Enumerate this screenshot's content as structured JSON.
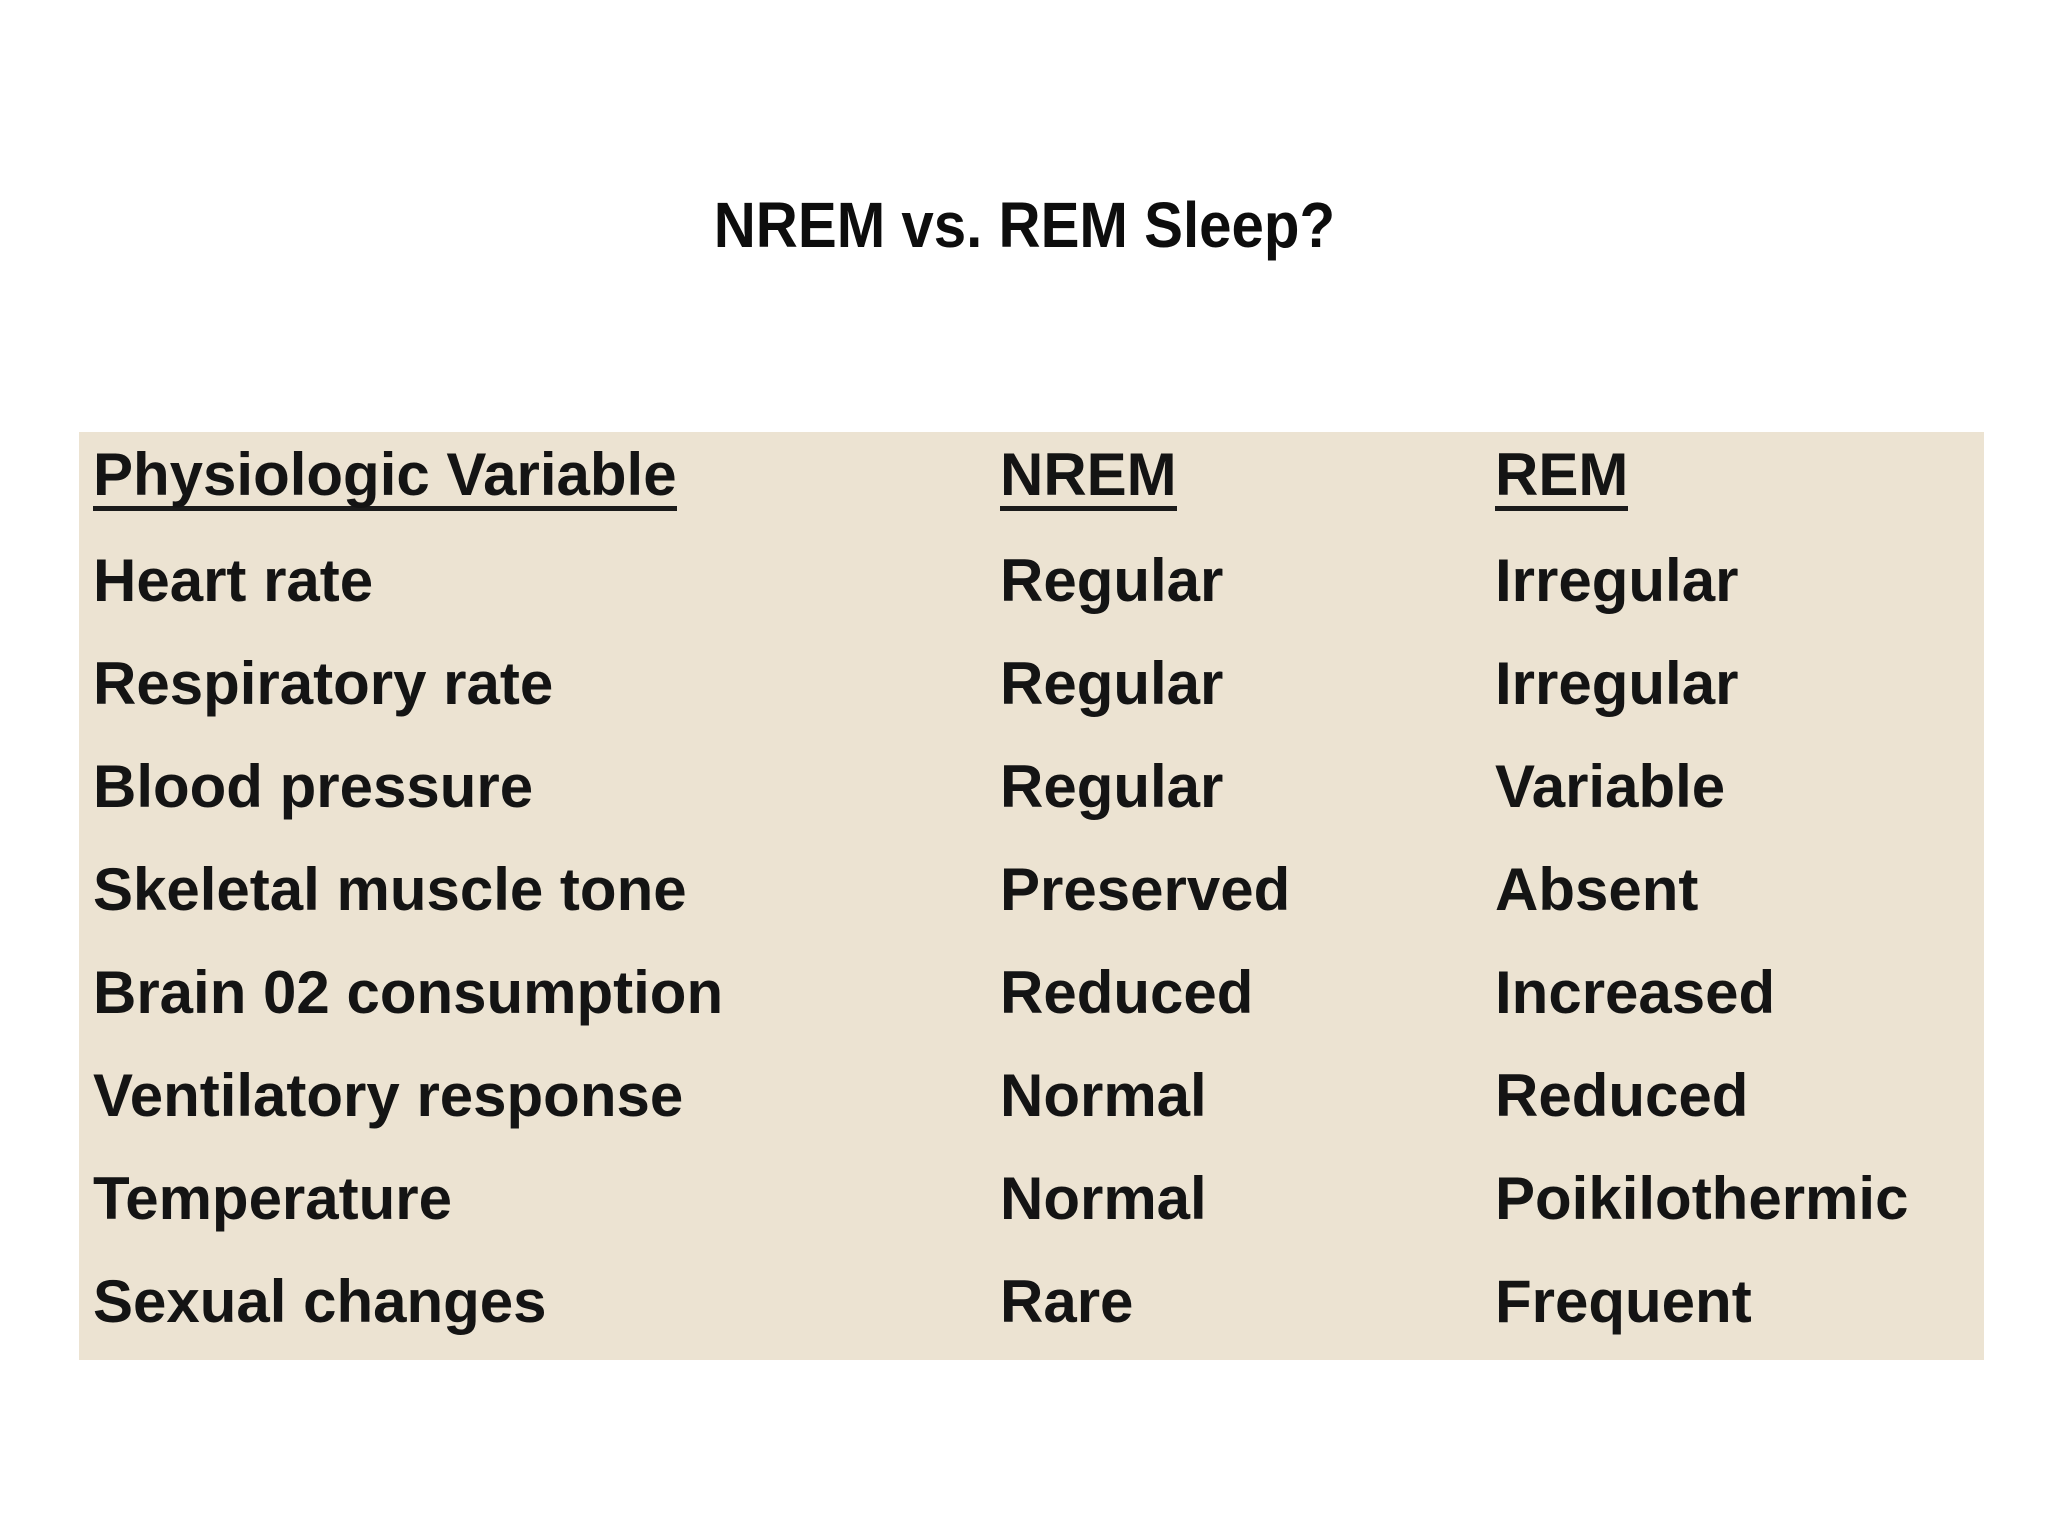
{
  "slide": {
    "title": "NREM vs. REM Sleep?",
    "background_color": "#ffffff",
    "text_color": "#121212"
  },
  "table": {
    "background_color": "#ece3d2",
    "headers": {
      "variable": "Physiologic Variable",
      "nrem": "NREM",
      "rem": "REM"
    },
    "rows": [
      {
        "variable": "Heart rate",
        "nrem": "Regular",
        "rem": "Irregular"
      },
      {
        "variable": "Respiratory rate",
        "nrem": "Regular",
        "rem": "Irregular"
      },
      {
        "variable": "Blood pressure",
        "nrem": "Regular",
        "rem": "Variable"
      },
      {
        "variable": "Skeletal muscle tone",
        "nrem": "Preserved",
        "rem": "Absent"
      },
      {
        "variable": "Brain 02 consumption",
        "nrem": "Reduced",
        "rem": "Increased"
      },
      {
        "variable": "Ventilatory response",
        "nrem": "Normal",
        "rem": "Reduced"
      },
      {
        "variable": "Temperature",
        "nrem": "Normal",
        "rem": "Poikilothermic"
      },
      {
        "variable": "Sexual changes",
        "nrem": "Rare",
        "rem": "Frequent"
      }
    ]
  }
}
